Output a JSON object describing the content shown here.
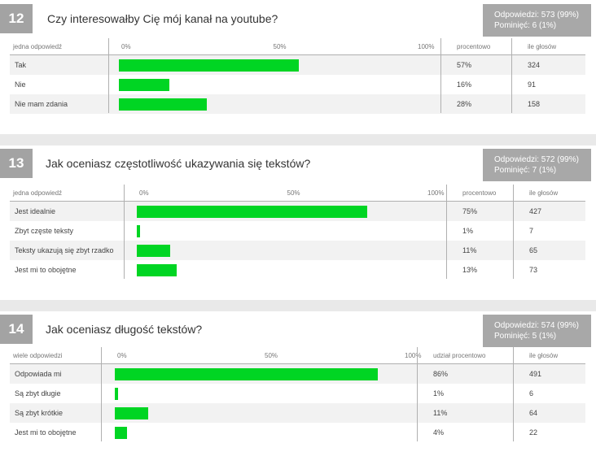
{
  "chart_data": [
    {
      "type": "bar",
      "number": "12",
      "title": "Czy interesowałby Cię mój kanał na youtube?",
      "answered": "Odpowiedzi: 573 (99%)",
      "skipped": "Pominięć: 6 (1%)",
      "answer_header": "jedna odpowiedź",
      "percent_header": "procentowo",
      "votes_header": "ile głosów",
      "ticks": [
        "0%",
        "50%",
        "100%"
      ],
      "categories": [
        "Tak",
        "Nie",
        "Nie mam zdania"
      ],
      "values": [
        57,
        16,
        28
      ],
      "percent_labels": [
        "57%",
        "16%",
        "28%"
      ],
      "votes": [
        "324",
        "91",
        "158"
      ],
      "xlim": [
        0,
        100
      ]
    },
    {
      "type": "bar",
      "number": "13",
      "title": "Jak oceniasz częstotliwość ukazywania się tekstów?",
      "answered": "Odpowiedzi: 572 (99%)",
      "skipped": "Pominięć: 7 (1%)",
      "answer_header": "jedna odpowiedź",
      "percent_header": "procentowo",
      "votes_header": "ile głosów",
      "ticks": [
        "0%",
        "50%",
        "100%"
      ],
      "categories": [
        "Jest idealnie",
        "Zbyt częste teksty",
        "Teksty ukazują się zbyt rzadko",
        "Jest mi to obojętne"
      ],
      "values": [
        75,
        1,
        11,
        13
      ],
      "percent_labels": [
        "75%",
        "1%",
        "11%",
        "13%"
      ],
      "votes": [
        "427",
        "7",
        "65",
        "73"
      ],
      "xlim": [
        0,
        100
      ]
    },
    {
      "type": "bar",
      "number": "14",
      "title": "Jak oceniasz długość tekstów?",
      "answered": "Odpowiedzi: 574 (99%)",
      "skipped": "Pominięć: 5 (1%)",
      "answer_header": "wiele odpowiedzi",
      "percent_header": "udział procentowo",
      "votes_header": "ile głosów",
      "ticks": [
        "0%",
        "50%",
        "100%"
      ],
      "categories": [
        "Odpowiada mi",
        "Są zbyt długie",
        "Są zbyt krótkie",
        "Jest mi to obojętne"
      ],
      "values": [
        86,
        1,
        11,
        4
      ],
      "percent_labels": [
        "86%",
        "1%",
        "11%",
        "4%"
      ],
      "votes": [
        "491",
        "6",
        "64",
        "22"
      ],
      "xlim": [
        0,
        100
      ]
    }
  ]
}
